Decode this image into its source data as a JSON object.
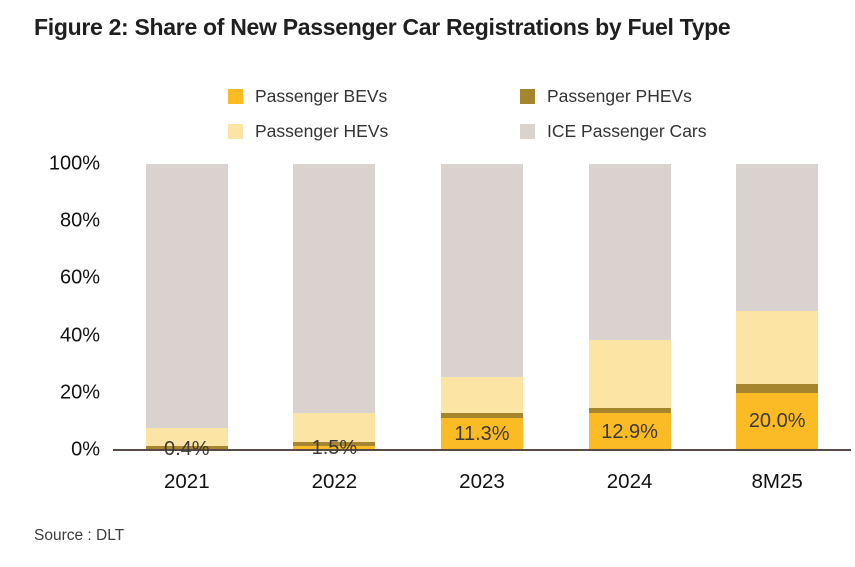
{
  "title": "Figure 2: Share of New Passenger Car Registrations by Fuel Type",
  "source": "Source : DLT",
  "colors": {
    "bev": "#FBBB25",
    "phev": "#A6852F",
    "hev": "#FCE4A4",
    "ice": "#D9D2CF",
    "axis_line": "#5B4A43",
    "title_text": "#1F1F1F",
    "data_label_text": "#3D3935"
  },
  "legend": {
    "items": [
      {
        "label": "Passenger BEVs",
        "color": "#FBBB25"
      },
      {
        "label": "Passenger PHEVs",
        "color": "#A6852F"
      },
      {
        "label": "Passenger HEVs",
        "color": "#FCE4A4"
      },
      {
        "label": "ICE Passenger Cars",
        "color": "#D9D2CF"
      }
    ]
  },
  "chart_data": {
    "type": "bar",
    "stacked": true,
    "title": "Figure 2: Share of New Passenger Car Registrations by Fuel Type",
    "categories": [
      "2021",
      "2022",
      "2023",
      "2024",
      "8M25"
    ],
    "series": [
      {
        "name": "Passenger BEVs",
        "color": "#FBBB25",
        "values": [
          0.4,
          1.5,
          11.3,
          12.9,
          20.0
        ],
        "data_labels": [
          "0.4%",
          "1.5%",
          "11.3%",
          "12.9%",
          "20.0%"
        ]
      },
      {
        "name": "Passenger PHEVs",
        "color": "#A6852F",
        "values": [
          1.1,
          1.3,
          1.5,
          1.7,
          3.0
        ]
      },
      {
        "name": "Passenger HEVs",
        "color": "#FCE4A4",
        "values": [
          6.3,
          10.0,
          12.7,
          24.0,
          25.5
        ]
      },
      {
        "name": "ICE Passenger Cars",
        "color": "#D9D2CF",
        "values": [
          92.2,
          87.2,
          74.5,
          61.4,
          51.5
        ]
      }
    ],
    "xlabel": "",
    "ylabel": "",
    "ylim": [
      0,
      100
    ],
    "yticks": [
      "0%",
      "20%",
      "40%",
      "60%",
      "80%",
      "100%"
    ],
    "grid": false,
    "legend_position": "top"
  }
}
